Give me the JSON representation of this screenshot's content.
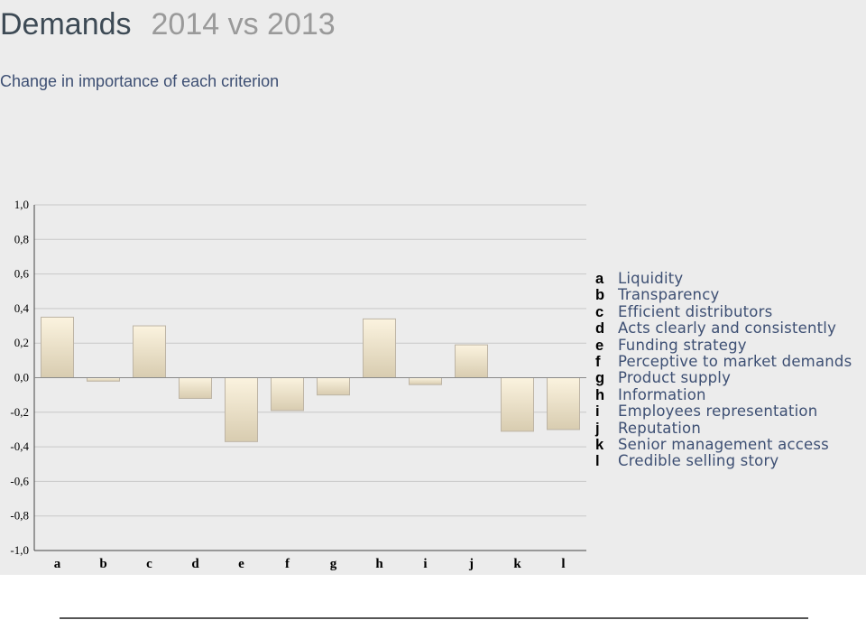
{
  "header": {
    "title": "Demands",
    "title_suffix": "2014 vs 2013",
    "subtitle": "Change in importance of each criterion"
  },
  "colors": {
    "bar_fill_light": "#fbf3df",
    "bar_fill_dark": "#d8ccb0",
    "bar_stroke": "#bdb4a5",
    "background": "#ececec"
  },
  "chart_data": {
    "type": "bar",
    "categories": [
      "a",
      "b",
      "c",
      "d",
      "e",
      "f",
      "g",
      "h",
      "i",
      "j",
      "k",
      "l"
    ],
    "values": [
      0.35,
      -0.02,
      0.3,
      -0.12,
      -0.37,
      -0.19,
      -0.1,
      0.34,
      -0.04,
      0.19,
      -0.31,
      -0.3
    ],
    "ylim": [
      -1.0,
      1.0
    ],
    "yticks": [
      "1,0",
      "0,8",
      "0,6",
      "0,4",
      "0,2",
      "0,0",
      "-0,2",
      "-0,4",
      "-0,6",
      "-0,8",
      "-1,0"
    ],
    "grid": true,
    "legend": [
      {
        "key": "a",
        "label": "Liquidity"
      },
      {
        "key": "b",
        "label": "Transparency"
      },
      {
        "key": "c",
        "label": "Efficient distributors"
      },
      {
        "key": "d",
        "label": "Acts clearly and consistently"
      },
      {
        "key": "e",
        "label": "Funding strategy"
      },
      {
        "key": "f",
        "label": "Perceptive to market demands"
      },
      {
        "key": "g",
        "label": "Product supply"
      },
      {
        "key": "h",
        "label": "Information"
      },
      {
        "key": "i",
        "label": "Employees representation"
      },
      {
        "key": "j",
        "label": "Reputation"
      },
      {
        "key": "k",
        "label": "Senior management access"
      },
      {
        "key": "l",
        "label": "Credible selling story"
      }
    ],
    "legend_position": "right"
  }
}
